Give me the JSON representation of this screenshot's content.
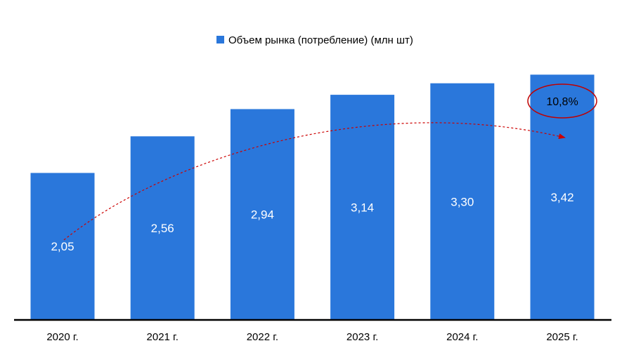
{
  "chart_data": {
    "type": "bar",
    "categories": [
      "2020 г.",
      "2021 г.",
      "2022 г.",
      "2023 г.",
      "2024 г.",
      "2025 г."
    ],
    "series": [
      {
        "name": "Объем рынка (потребление) (млн шт)",
        "values": [
          2.05,
          2.56,
          2.94,
          3.14,
          3.3,
          3.42
        ],
        "labels": [
          "2,05",
          "2,56",
          "2,94",
          "3,14",
          "3,30",
          "3,42"
        ],
        "color": "#2a77db"
      }
    ],
    "legend": {
      "position": "top",
      "label": "Объем рынка (потребление) (млн шт)"
    },
    "annotation": {
      "text": "10,8%",
      "arrow_color": "#cc0000",
      "circle_color": "#c00000"
    },
    "ylim": [
      0,
      4.07
    ],
    "grid": false
  }
}
